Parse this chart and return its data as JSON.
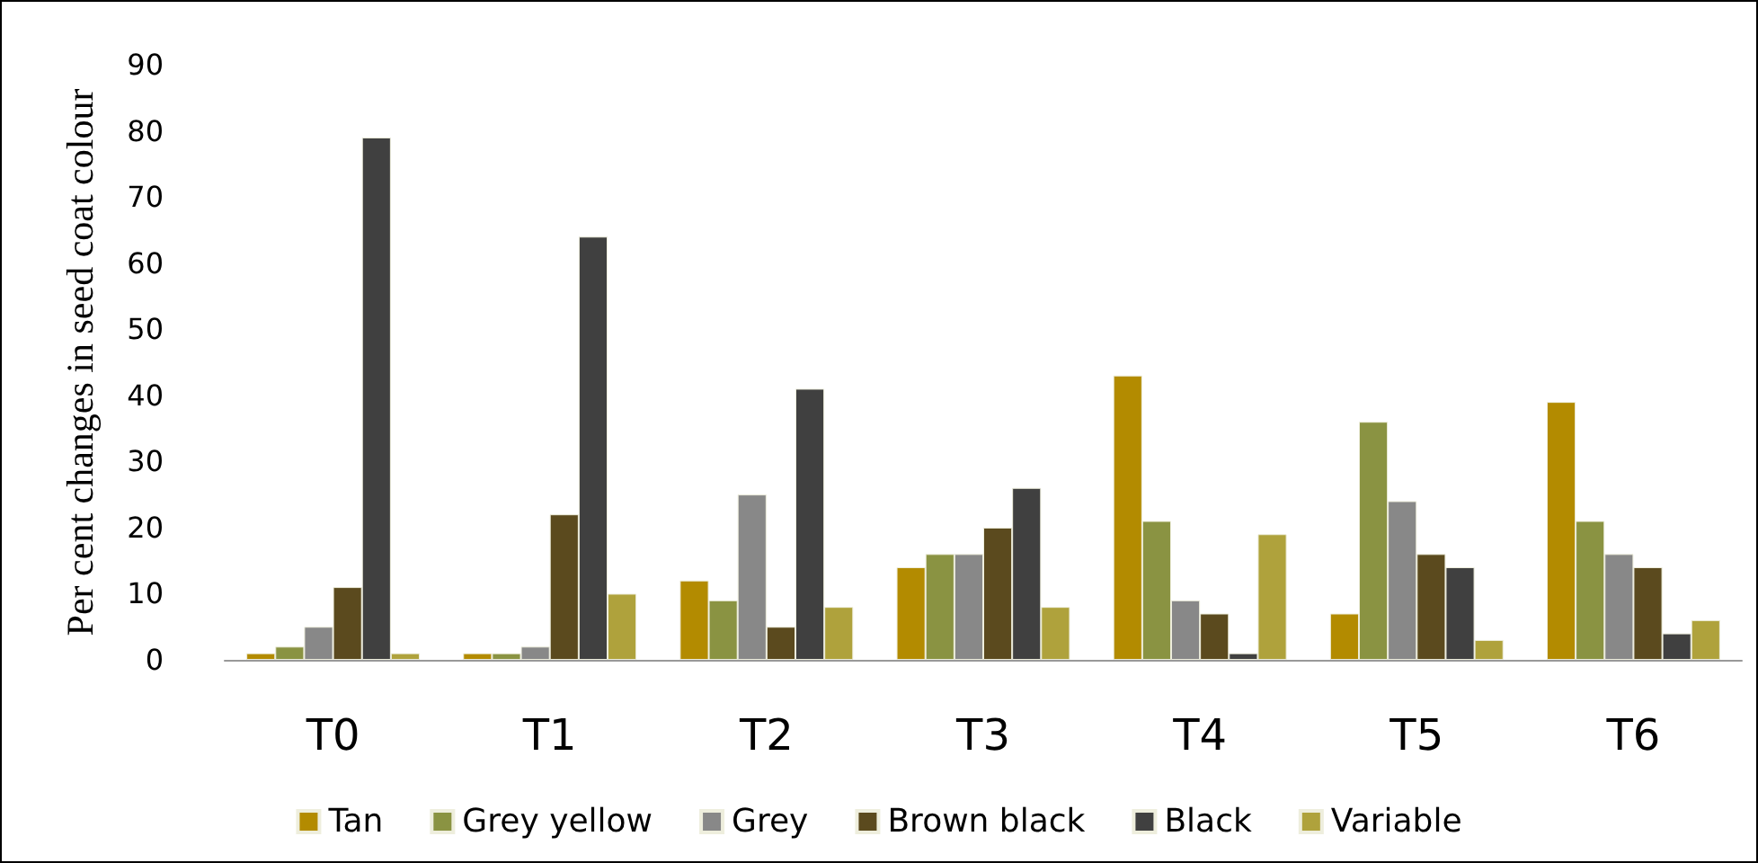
{
  "chart_data": {
    "type": "bar",
    "ylabel": "Per cent changes in seed coat colour",
    "categories": [
      "T0",
      "T1",
      "T2",
      "T3",
      "T4",
      "T5",
      "T6"
    ],
    "series": [
      {
        "name": "Tan",
        "color": "#b38b00",
        "values": [
          1,
          1,
          12,
          14,
          43,
          7,
          39
        ]
      },
      {
        "name": "Grey yellow",
        "color": "#8a9342",
        "values": [
          2,
          1,
          9,
          16,
          21,
          36,
          21
        ]
      },
      {
        "name": "Grey",
        "color": "#888888",
        "values": [
          5,
          2,
          25,
          16,
          9,
          24,
          16
        ]
      },
      {
        "name": "Brown black",
        "color": "#5b4a1e",
        "values": [
          11,
          22,
          5,
          20,
          7,
          16,
          14
        ]
      },
      {
        "name": "Black",
        "color": "#404040",
        "values": [
          79,
          64,
          41,
          26,
          1,
          14,
          4
        ]
      },
      {
        "name": "Variable",
        "color": "#afa23c",
        "values": [
          1,
          10,
          8,
          8,
          19,
          3,
          6
        ]
      }
    ],
    "ylim": [
      0,
      90
    ],
    "yticks": [
      0,
      10,
      20,
      30,
      40,
      50,
      60,
      70,
      80,
      90
    ],
    "grid": false,
    "legend": "bottom"
  }
}
